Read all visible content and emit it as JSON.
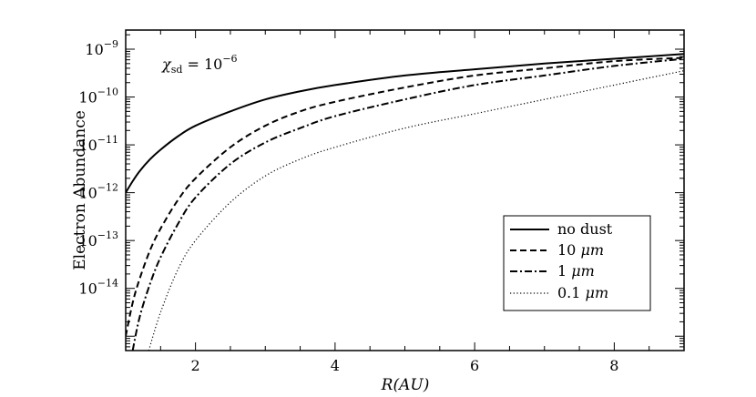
{
  "chart_data": {
    "type": "line",
    "xlabel": "R(AU)",
    "ylabel": "Electron Abundance",
    "xlim": [
      1,
      9
    ],
    "ylim_exponent": [
      -15.3,
      -8.6
    ],
    "yscale": "log",
    "x_ticks": [
      2,
      4,
      6,
      8
    ],
    "y_ticks": [
      {
        "base": "10",
        "exp": "-9"
      },
      {
        "base": "10",
        "exp": "-10"
      },
      {
        "base": "10",
        "exp": "-11"
      },
      {
        "base": "10",
        "exp": "-12"
      },
      {
        "base": "10",
        "exp": "-13"
      },
      {
        "base": "10",
        "exp": "-14"
      }
    ],
    "y_tick_values": [
      -9,
      -10,
      -11,
      -12,
      -13,
      -14
    ],
    "annotation": {
      "symbol": "χ",
      "sub": "sd",
      "rhs": " = 10",
      "exp": "−6"
    },
    "legend_position": "lower-right",
    "series": [
      {
        "name": "no dust",
        "style": "solid",
        "x": [
          1,
          1.1,
          1.2,
          1.35,
          1.5,
          1.75,
          2,
          2.5,
          3,
          3.5,
          4,
          5,
          6,
          7,
          8,
          9
        ],
        "log10_y": [
          -12,
          -11.76,
          -11.55,
          -11.3,
          -11.1,
          -10.82,
          -10.6,
          -10.3,
          -10.05,
          -9.88,
          -9.75,
          -9.55,
          -9.42,
          -9.3,
          -9.2,
          -9.1
        ]
      },
      {
        "name": "10 μm",
        "style": "dashed",
        "x": [
          1,
          1.1,
          1.2,
          1.35,
          1.5,
          1.75,
          2,
          2.5,
          3,
          3.5,
          4,
          5,
          6,
          7,
          8,
          9
        ],
        "log10_y": [
          -15.0,
          -14.3,
          -13.8,
          -13.2,
          -12.75,
          -12.15,
          -11.7,
          -11.05,
          -10.6,
          -10.3,
          -10.1,
          -9.8,
          -9.55,
          -9.4,
          -9.25,
          -9.18
        ]
      },
      {
        "name": "1 μm",
        "style": "dash-dot",
        "x": [
          1.1,
          1.2,
          1.35,
          1.5,
          1.75,
          2,
          2.5,
          3,
          3.5,
          4,
          5,
          6,
          7,
          8,
          9
        ],
        "log10_y": [
          -15.3,
          -14.6,
          -13.9,
          -13.35,
          -12.65,
          -12.1,
          -11.4,
          -10.95,
          -10.65,
          -10.4,
          -10.05,
          -9.75,
          -9.55,
          -9.35,
          -9.2
        ]
      },
      {
        "name": "0.1 μm",
        "style": "dotted",
        "x": [
          1.33,
          1.5,
          1.75,
          2,
          2.5,
          3,
          3.5,
          4,
          5,
          6,
          7,
          8,
          9
        ],
        "log10_y": [
          -15.3,
          -14.5,
          -13.6,
          -13.0,
          -12.2,
          -11.65,
          -11.3,
          -11.05,
          -10.65,
          -10.35,
          -10.05,
          -9.75,
          -9.45
        ]
      }
    ],
    "legend_labels": [
      {
        "text": "no dust",
        "unit": ""
      },
      {
        "text": "10",
        "unit": "μm"
      },
      {
        "text": "1",
        "unit": "μm"
      },
      {
        "text": "0.1",
        "unit": "μm"
      }
    ]
  }
}
